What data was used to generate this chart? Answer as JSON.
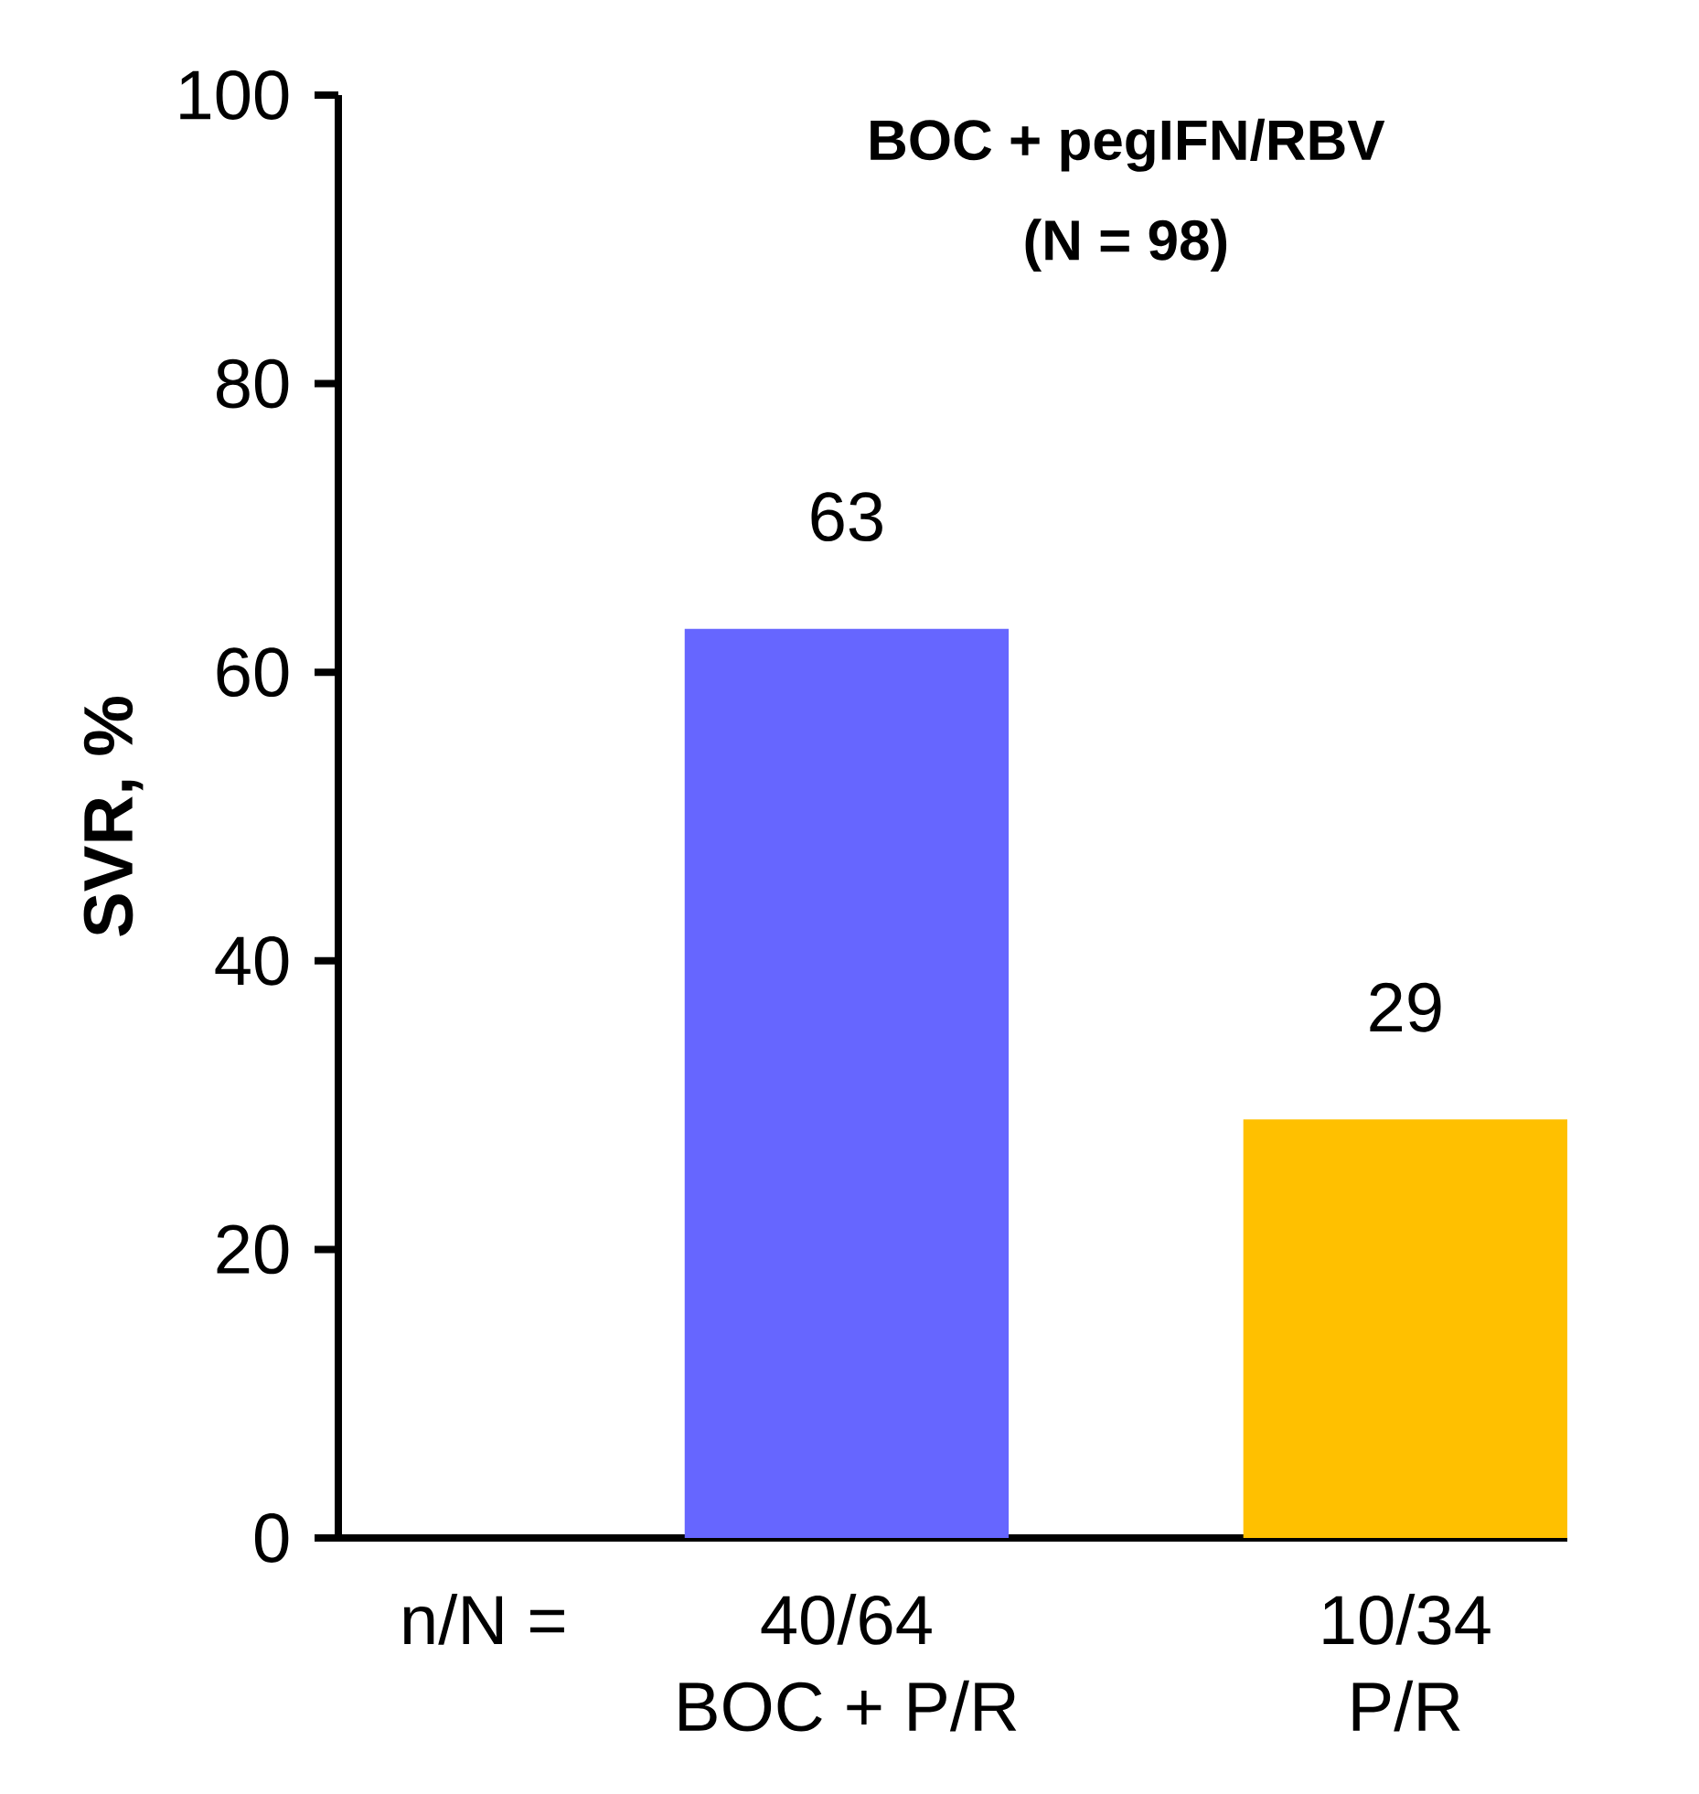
{
  "chart_data": {
    "type": "bar",
    "title": "BOC + pegIFN/RBV",
    "subtitle": "(N = 98)",
    "ylabel": "SVR, %",
    "categories": [
      "BOC + P/R",
      "P/R"
    ],
    "values": [
      63,
      29
    ],
    "colors": [
      "#6666ff",
      "#ffc000"
    ],
    "ylim": [
      0,
      100
    ],
    "yticks": [
      0,
      20,
      40,
      60,
      80,
      100
    ],
    "data_labels": true,
    "annotations": [
      "n/N =",
      "40/64",
      "10/34"
    ]
  }
}
